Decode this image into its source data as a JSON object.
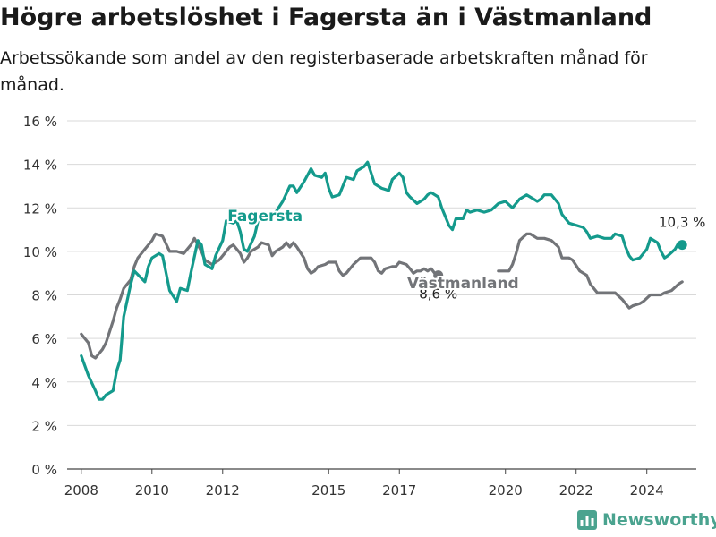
{
  "title": "Högre arbetslöshet i Fagersta än i Västmanland",
  "subtitle": "Arbetssökande som andel av den registerbaserade arbetskraften månad för månad.",
  "brand": {
    "name": "Newsworthy",
    "icon": "bar-chart-logo-icon",
    "color": "#4aa38f"
  },
  "chart_data": {
    "type": "line",
    "title": "Högre arbetslöshet i Fagersta än i Västmanland",
    "ylim": [
      0,
      16
    ],
    "xlim": [
      2007.6,
      2025.4
    ],
    "y_ticks": [
      0,
      2,
      4,
      6,
      8,
      10,
      12,
      14,
      16
    ],
    "y_tick_labels": [
      "0 %",
      "2 %",
      "4 %",
      "6 %",
      "8 %",
      "10 %",
      "12 %",
      "14 %",
      "16 %"
    ],
    "x_ticks": [
      2008,
      2010,
      2012,
      2015,
      2017,
      2020,
      2022,
      2024
    ],
    "x_tick_labels": [
      "2008",
      "2010",
      "2012",
      "2015",
      "2017",
      "2020",
      "2022",
      "2024"
    ],
    "grid": true,
    "series": [
      {
        "name": "Fagersta",
        "color": "#149a8c",
        "end_label": "10,3 %",
        "points": [
          [
            2008.0,
            5.2
          ],
          [
            2008.2,
            4.3
          ],
          [
            2008.4,
            3.6
          ],
          [
            2008.5,
            3.2
          ],
          [
            2008.6,
            3.2
          ],
          [
            2008.7,
            3.4
          ],
          [
            2008.9,
            3.6
          ],
          [
            2009.0,
            4.5
          ],
          [
            2009.1,
            5.0
          ],
          [
            2009.2,
            7.0
          ],
          [
            2009.4,
            8.5
          ],
          [
            2009.5,
            9.1
          ],
          [
            2009.8,
            8.6
          ],
          [
            2009.9,
            9.3
          ],
          [
            2010.0,
            9.7
          ],
          [
            2010.2,
            9.9
          ],
          [
            2010.3,
            9.8
          ],
          [
            2010.4,
            9.0
          ],
          [
            2010.5,
            8.2
          ],
          [
            2010.7,
            7.7
          ],
          [
            2010.8,
            8.3
          ],
          [
            2011.0,
            8.2
          ],
          [
            2011.1,
            9.0
          ],
          [
            2011.3,
            10.5
          ],
          [
            2011.4,
            10.3
          ],
          [
            2011.5,
            9.4
          ],
          [
            2011.6,
            9.3
          ],
          [
            2011.7,
            9.2
          ],
          [
            2011.8,
            9.8
          ],
          [
            2012.0,
            10.5
          ],
          [
            2012.1,
            11.4
          ],
          [
            2012.3,
            11.3
          ],
          [
            2012.4,
            11.4
          ],
          [
            2012.5,
            10.9
          ],
          [
            2012.6,
            10.1
          ],
          [
            2012.7,
            10.0
          ],
          [
            2012.9,
            10.7
          ],
          [
            2013.0,
            11.4
          ],
          [
            2013.2,
            11.6
          ],
          [
            2013.5,
            11.8
          ],
          [
            2013.7,
            12.3
          ],
          [
            2013.9,
            13.0
          ],
          [
            2014.0,
            13.0
          ],
          [
            2014.1,
            12.7
          ],
          [
            2014.3,
            13.2
          ],
          [
            2014.5,
            13.8
          ],
          [
            2014.6,
            13.5
          ],
          [
            2014.8,
            13.4
          ],
          [
            2014.9,
            13.6
          ],
          [
            2015.0,
            12.9
          ],
          [
            2015.1,
            12.5
          ],
          [
            2015.3,
            12.6
          ],
          [
            2015.4,
            13.0
          ],
          [
            2015.5,
            13.4
          ],
          [
            2015.7,
            13.3
          ],
          [
            2015.8,
            13.7
          ],
          [
            2016.0,
            13.9
          ],
          [
            2016.1,
            14.1
          ],
          [
            2016.2,
            13.6
          ],
          [
            2016.3,
            13.1
          ],
          [
            2016.5,
            12.9
          ],
          [
            2016.7,
            12.8
          ],
          [
            2016.8,
            13.3
          ],
          [
            2017.0,
            13.6
          ],
          [
            2017.1,
            13.4
          ],
          [
            2017.2,
            12.7
          ],
          [
            2017.3,
            12.5
          ],
          [
            2017.5,
            12.2
          ],
          [
            2017.7,
            12.4
          ],
          [
            2017.8,
            12.6
          ],
          [
            2017.9,
            12.7
          ],
          [
            2018.1,
            12.5
          ],
          [
            2018.2,
            12.0
          ],
          [
            2018.3,
            11.6
          ],
          [
            2018.4,
            11.2
          ],
          [
            2018.5,
            11.0
          ],
          [
            2018.6,
            11.5
          ],
          [
            2018.8,
            11.5
          ],
          [
            2018.9,
            11.9
          ],
          [
            2019.0,
            11.8
          ],
          [
            2019.2,
            11.9
          ],
          [
            2019.4,
            11.8
          ],
          [
            2019.6,
            11.9
          ],
          [
            2019.8,
            12.2
          ],
          [
            2020.0,
            12.3
          ],
          [
            2020.2,
            12.0
          ],
          [
            2020.4,
            12.4
          ],
          [
            2020.6,
            12.6
          ],
          [
            2020.8,
            12.4
          ],
          [
            2020.9,
            12.3
          ],
          [
            2021.0,
            12.4
          ],
          [
            2021.1,
            12.6
          ],
          [
            2021.3,
            12.6
          ],
          [
            2021.5,
            12.2
          ],
          [
            2021.6,
            11.7
          ],
          [
            2021.8,
            11.3
          ],
          [
            2022.0,
            11.2
          ],
          [
            2022.2,
            11.1
          ],
          [
            2022.3,
            10.9
          ],
          [
            2022.4,
            10.6
          ],
          [
            2022.6,
            10.7
          ],
          [
            2022.8,
            10.6
          ],
          [
            2023.0,
            10.6
          ],
          [
            2023.1,
            10.8
          ],
          [
            2023.3,
            10.7
          ],
          [
            2023.4,
            10.2
          ],
          [
            2023.5,
            9.8
          ],
          [
            2023.6,
            9.6
          ],
          [
            2023.8,
            9.7
          ],
          [
            2023.9,
            9.9
          ],
          [
            2024.0,
            10.1
          ],
          [
            2024.1,
            10.6
          ],
          [
            2024.3,
            10.4
          ],
          [
            2024.4,
            10.0
          ],
          [
            2024.5,
            9.7
          ],
          [
            2024.6,
            9.8
          ],
          [
            2024.8,
            10.1
          ],
          [
            2024.9,
            10.4
          ],
          [
            2025.0,
            10.3
          ]
        ]
      },
      {
        "name": "Västmanland",
        "color": "#727478",
        "end_label": "8,6 %",
        "points": [
          [
            2008.0,
            6.2
          ],
          [
            2008.1,
            6.0
          ],
          [
            2008.2,
            5.8
          ],
          [
            2008.3,
            5.2
          ],
          [
            2008.4,
            5.1
          ],
          [
            2008.5,
            5.3
          ],
          [
            2008.6,
            5.5
          ],
          [
            2008.7,
            5.8
          ],
          [
            2008.8,
            6.3
          ],
          [
            2008.9,
            6.8
          ],
          [
            2009.0,
            7.4
          ],
          [
            2009.1,
            7.8
          ],
          [
            2009.2,
            8.3
          ],
          [
            2009.4,
            8.7
          ],
          [
            2009.5,
            9.3
          ],
          [
            2009.6,
            9.7
          ],
          [
            2009.8,
            10.1
          ],
          [
            2009.9,
            10.3
          ],
          [
            2010.0,
            10.5
          ],
          [
            2010.1,
            10.8
          ],
          [
            2010.3,
            10.7
          ],
          [
            2010.5,
            10.0
          ],
          [
            2010.7,
            10.0
          ],
          [
            2010.9,
            9.9
          ],
          [
            2011.0,
            10.1
          ],
          [
            2011.1,
            10.3
          ],
          [
            2011.2,
            10.6
          ],
          [
            2011.4,
            10.0
          ],
          [
            2011.5,
            9.6
          ],
          [
            2011.6,
            9.5
          ],
          [
            2011.7,
            9.4
          ],
          [
            2011.9,
            9.6
          ],
          [
            2012.0,
            9.8
          ],
          [
            2012.2,
            10.2
          ],
          [
            2012.3,
            10.3
          ],
          [
            2012.5,
            9.9
          ],
          [
            2012.6,
            9.5
          ],
          [
            2012.7,
            9.7
          ],
          [
            2012.8,
            10.0
          ],
          [
            2013.0,
            10.2
          ],
          [
            2013.1,
            10.4
          ],
          [
            2013.3,
            10.3
          ],
          [
            2013.4,
            9.8
          ],
          [
            2013.5,
            10.0
          ],
          [
            2013.7,
            10.2
          ],
          [
            2013.8,
            10.4
          ],
          [
            2013.9,
            10.2
          ],
          [
            2014.0,
            10.4
          ],
          [
            2014.1,
            10.2
          ],
          [
            2014.3,
            9.7
          ],
          [
            2014.4,
            9.2
          ],
          [
            2014.5,
            9.0
          ],
          [
            2014.6,
            9.1
          ],
          [
            2014.7,
            9.3
          ],
          [
            2014.9,
            9.4
          ],
          [
            2015.0,
            9.5
          ],
          [
            2015.2,
            9.5
          ],
          [
            2015.3,
            9.1
          ],
          [
            2015.4,
            8.9
          ],
          [
            2015.5,
            9.0
          ],
          [
            2015.7,
            9.4
          ],
          [
            2015.9,
            9.7
          ],
          [
            2016.0,
            9.7
          ],
          [
            2016.2,
            9.7
          ],
          [
            2016.3,
            9.5
          ],
          [
            2016.4,
            9.1
          ],
          [
            2016.5,
            9.0
          ],
          [
            2016.6,
            9.2
          ],
          [
            2016.8,
            9.3
          ],
          [
            2016.9,
            9.3
          ],
          [
            2017.0,
            9.5
          ],
          [
            2017.2,
            9.4
          ],
          [
            2017.3,
            9.2
          ],
          [
            2017.4,
            9.0
          ],
          [
            2017.5,
            9.1
          ],
          [
            2017.6,
            9.1
          ],
          [
            2017.7,
            9.2
          ],
          [
            2017.8,
            9.1
          ],
          [
            2017.9,
            9.2
          ],
          [
            2018.0,
            9.0
          ],
          [
            2018.1,
            8.9
          ]
        ]
      },
      {
        "name": "",
        "color": "#727478",
        "points": [
          [
            2019.8,
            9.1
          ],
          [
            2020.0,
            9.1
          ],
          [
            2020.1,
            9.1
          ],
          [
            2020.2,
            9.4
          ],
          [
            2020.3,
            9.9
          ],
          [
            2020.4,
            10.5
          ],
          [
            2020.6,
            10.8
          ],
          [
            2020.7,
            10.8
          ],
          [
            2020.9,
            10.6
          ],
          [
            2021.1,
            10.6
          ],
          [
            2021.3,
            10.5
          ],
          [
            2021.5,
            10.2
          ],
          [
            2021.6,
            9.7
          ],
          [
            2021.8,
            9.7
          ],
          [
            2021.9,
            9.6
          ],
          [
            2022.1,
            9.1
          ],
          [
            2022.3,
            8.9
          ],
          [
            2022.4,
            8.5
          ],
          [
            2022.6,
            8.1
          ],
          [
            2022.8,
            8.1
          ],
          [
            2023.0,
            8.1
          ],
          [
            2023.1,
            8.1
          ],
          [
            2023.3,
            7.8
          ],
          [
            2023.5,
            7.4
          ],
          [
            2023.6,
            7.5
          ],
          [
            2023.8,
            7.6
          ],
          [
            2023.9,
            7.7
          ],
          [
            2024.1,
            8.0
          ],
          [
            2024.2,
            8.0
          ],
          [
            2024.4,
            8.0
          ],
          [
            2024.5,
            8.1
          ],
          [
            2024.7,
            8.2
          ],
          [
            2024.9,
            8.5
          ],
          [
            2025.0,
            8.6
          ]
        ]
      }
    ],
    "annotations": [
      {
        "text": "Fagersta",
        "series": "Fagersta",
        "x": 2013.2,
        "y": 11.4
      },
      {
        "text": "Västmanland",
        "series": "Västmanland",
        "x": 2018.8,
        "y": 8.3
      }
    ]
  }
}
